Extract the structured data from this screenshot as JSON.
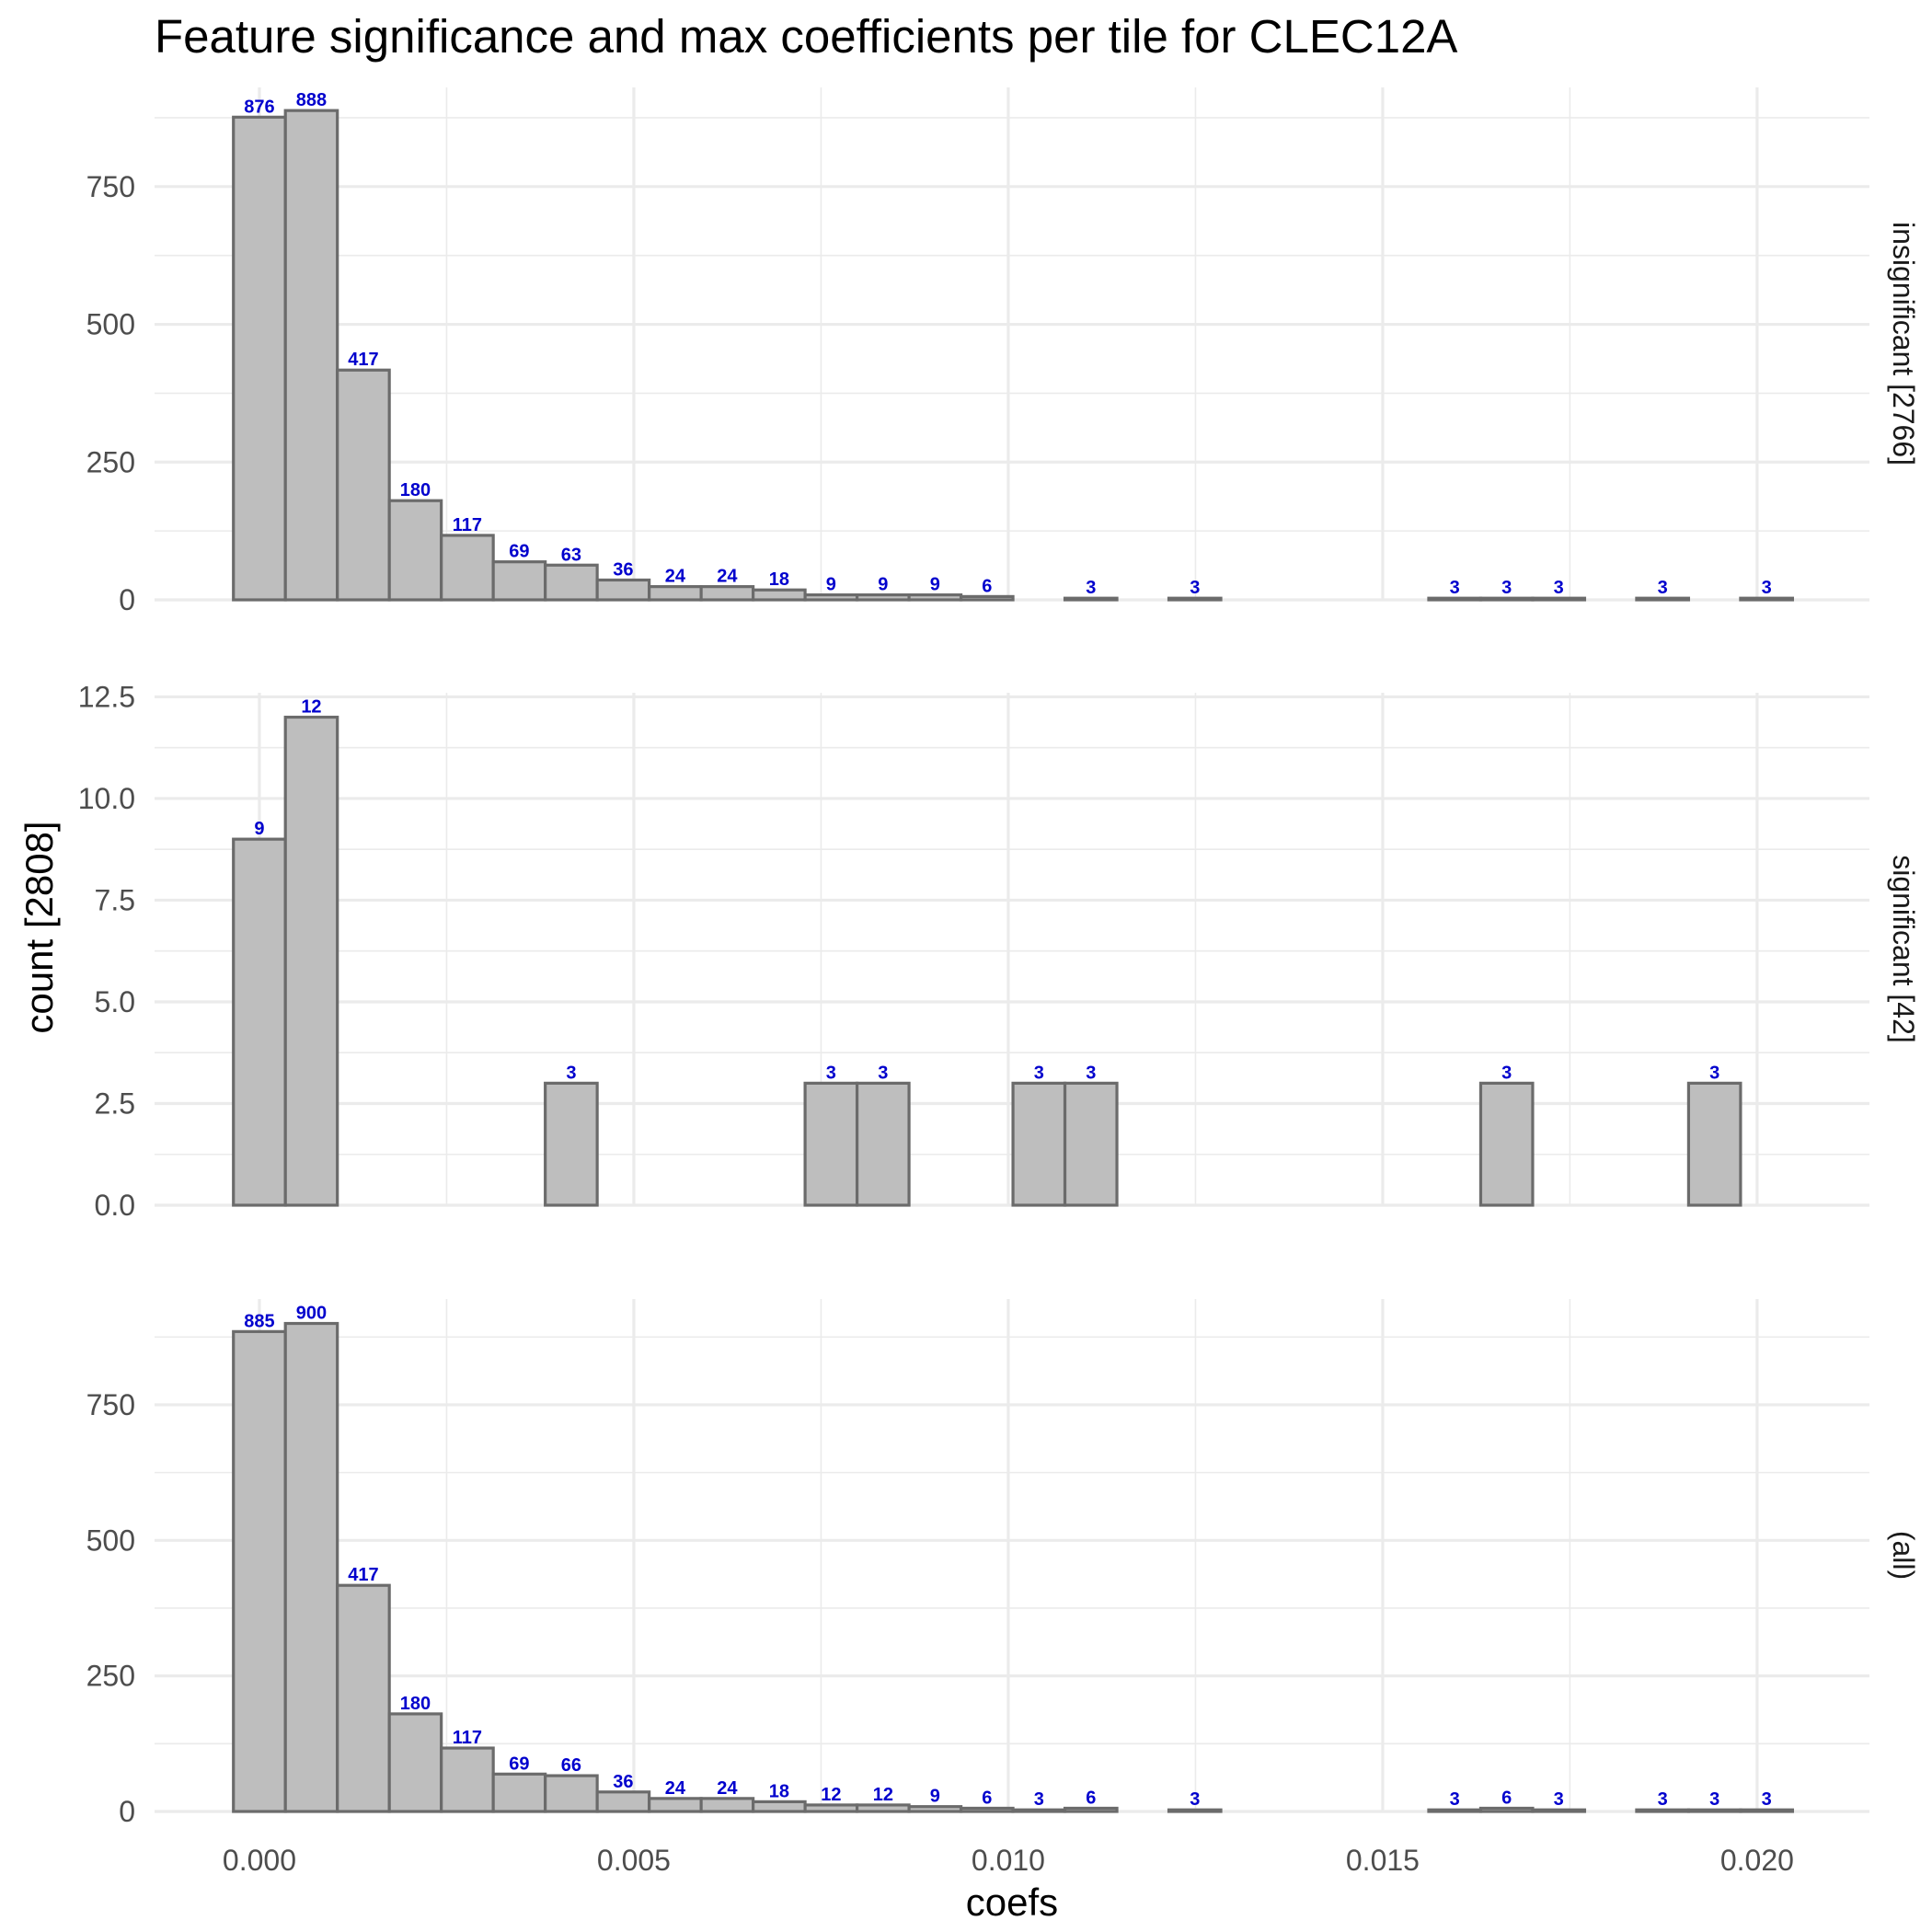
{
  "chart_data": {
    "type": "bar",
    "title": "Feature significance and max coefficients per tile for CLEC12A",
    "xlabel": "coefs",
    "ylabel": "count [2808]",
    "x_ticks": [
      "0.000",
      "0.005",
      "0.010",
      "0.015",
      "0.020"
    ],
    "x_tick_values": [
      0,
      0.005,
      0.01,
      0.015,
      0.02
    ],
    "xlim": [
      -0.0014,
      0.0215
    ],
    "bin_width": 0.000694,
    "bins_start": -0.000347,
    "n_bins": 30,
    "colors": {
      "bar_fill": "#bebebe",
      "bar_outline": "#6b6b6b",
      "label": "#0000cd",
      "grid": "#ebebeb"
    },
    "grid": true,
    "panels": [
      {
        "strip": "insignificant [2766]",
        "ylim": [
          0,
          930
        ],
        "y_ticks": [
          "0",
          "250",
          "500",
          "750"
        ],
        "y_tick_values": [
          0,
          250,
          500,
          750
        ],
        "values": [
          876,
          888,
          417,
          180,
          117,
          69,
          63,
          36,
          24,
          24,
          18,
          9,
          9,
          9,
          6,
          0,
          3,
          0,
          3,
          0,
          0,
          0,
          0,
          3,
          3,
          3,
          0,
          3,
          0,
          3
        ],
        "labels": [
          "876",
          "888",
          "417",
          "180",
          "117",
          "69",
          "63",
          "36",
          "24",
          "24",
          "18",
          "9",
          "9",
          "9",
          "6",
          "",
          "3",
          "",
          "3",
          "",
          "",
          "",
          "",
          "3",
          "3",
          "3",
          "",
          "3",
          "",
          "3"
        ]
      },
      {
        "strip": "significant [42]",
        "ylim": [
          0,
          12.6
        ],
        "y_ticks": [
          "0.0",
          "2.5",
          "5.0",
          "7.5",
          "10.0",
          "12.5"
        ],
        "y_tick_values": [
          0,
          2.5,
          5,
          7.5,
          10,
          12.5
        ],
        "values": [
          9,
          12,
          0,
          0,
          0,
          0,
          3,
          0,
          0,
          0,
          0,
          3,
          3,
          0,
          0,
          3,
          3,
          0,
          0,
          0,
          0,
          0,
          0,
          0,
          3,
          0,
          0,
          0,
          3,
          0
        ],
        "labels": [
          "9",
          "12",
          "",
          "",
          "",
          "",
          "3",
          "",
          "",
          "",
          "",
          "3",
          "3",
          "",
          "",
          "3",
          "3",
          "",
          "",
          "",
          "",
          "",
          "",
          "",
          "3",
          "",
          "",
          "",
          "3",
          ""
        ]
      },
      {
        "strip": "(all)",
        "ylim": [
          0,
          945
        ],
        "y_ticks": [
          "0",
          "250",
          "500",
          "750"
        ],
        "y_tick_values": [
          0,
          250,
          500,
          750
        ],
        "values": [
          885,
          900,
          417,
          180,
          117,
          69,
          66,
          36,
          24,
          24,
          18,
          12,
          12,
          9,
          6,
          3,
          6,
          0,
          3,
          0,
          0,
          0,
          0,
          3,
          6,
          3,
          0,
          3,
          3,
          3
        ],
        "labels": [
          "885",
          "900",
          "417",
          "180",
          "117",
          "69",
          "66",
          "36",
          "24",
          "24",
          "18",
          "12",
          "12",
          "9",
          "6",
          "3",
          "6",
          "",
          "3",
          "",
          "",
          "",
          "",
          "3",
          "6",
          "3",
          "",
          "3",
          "3",
          "3"
        ]
      }
    ]
  }
}
